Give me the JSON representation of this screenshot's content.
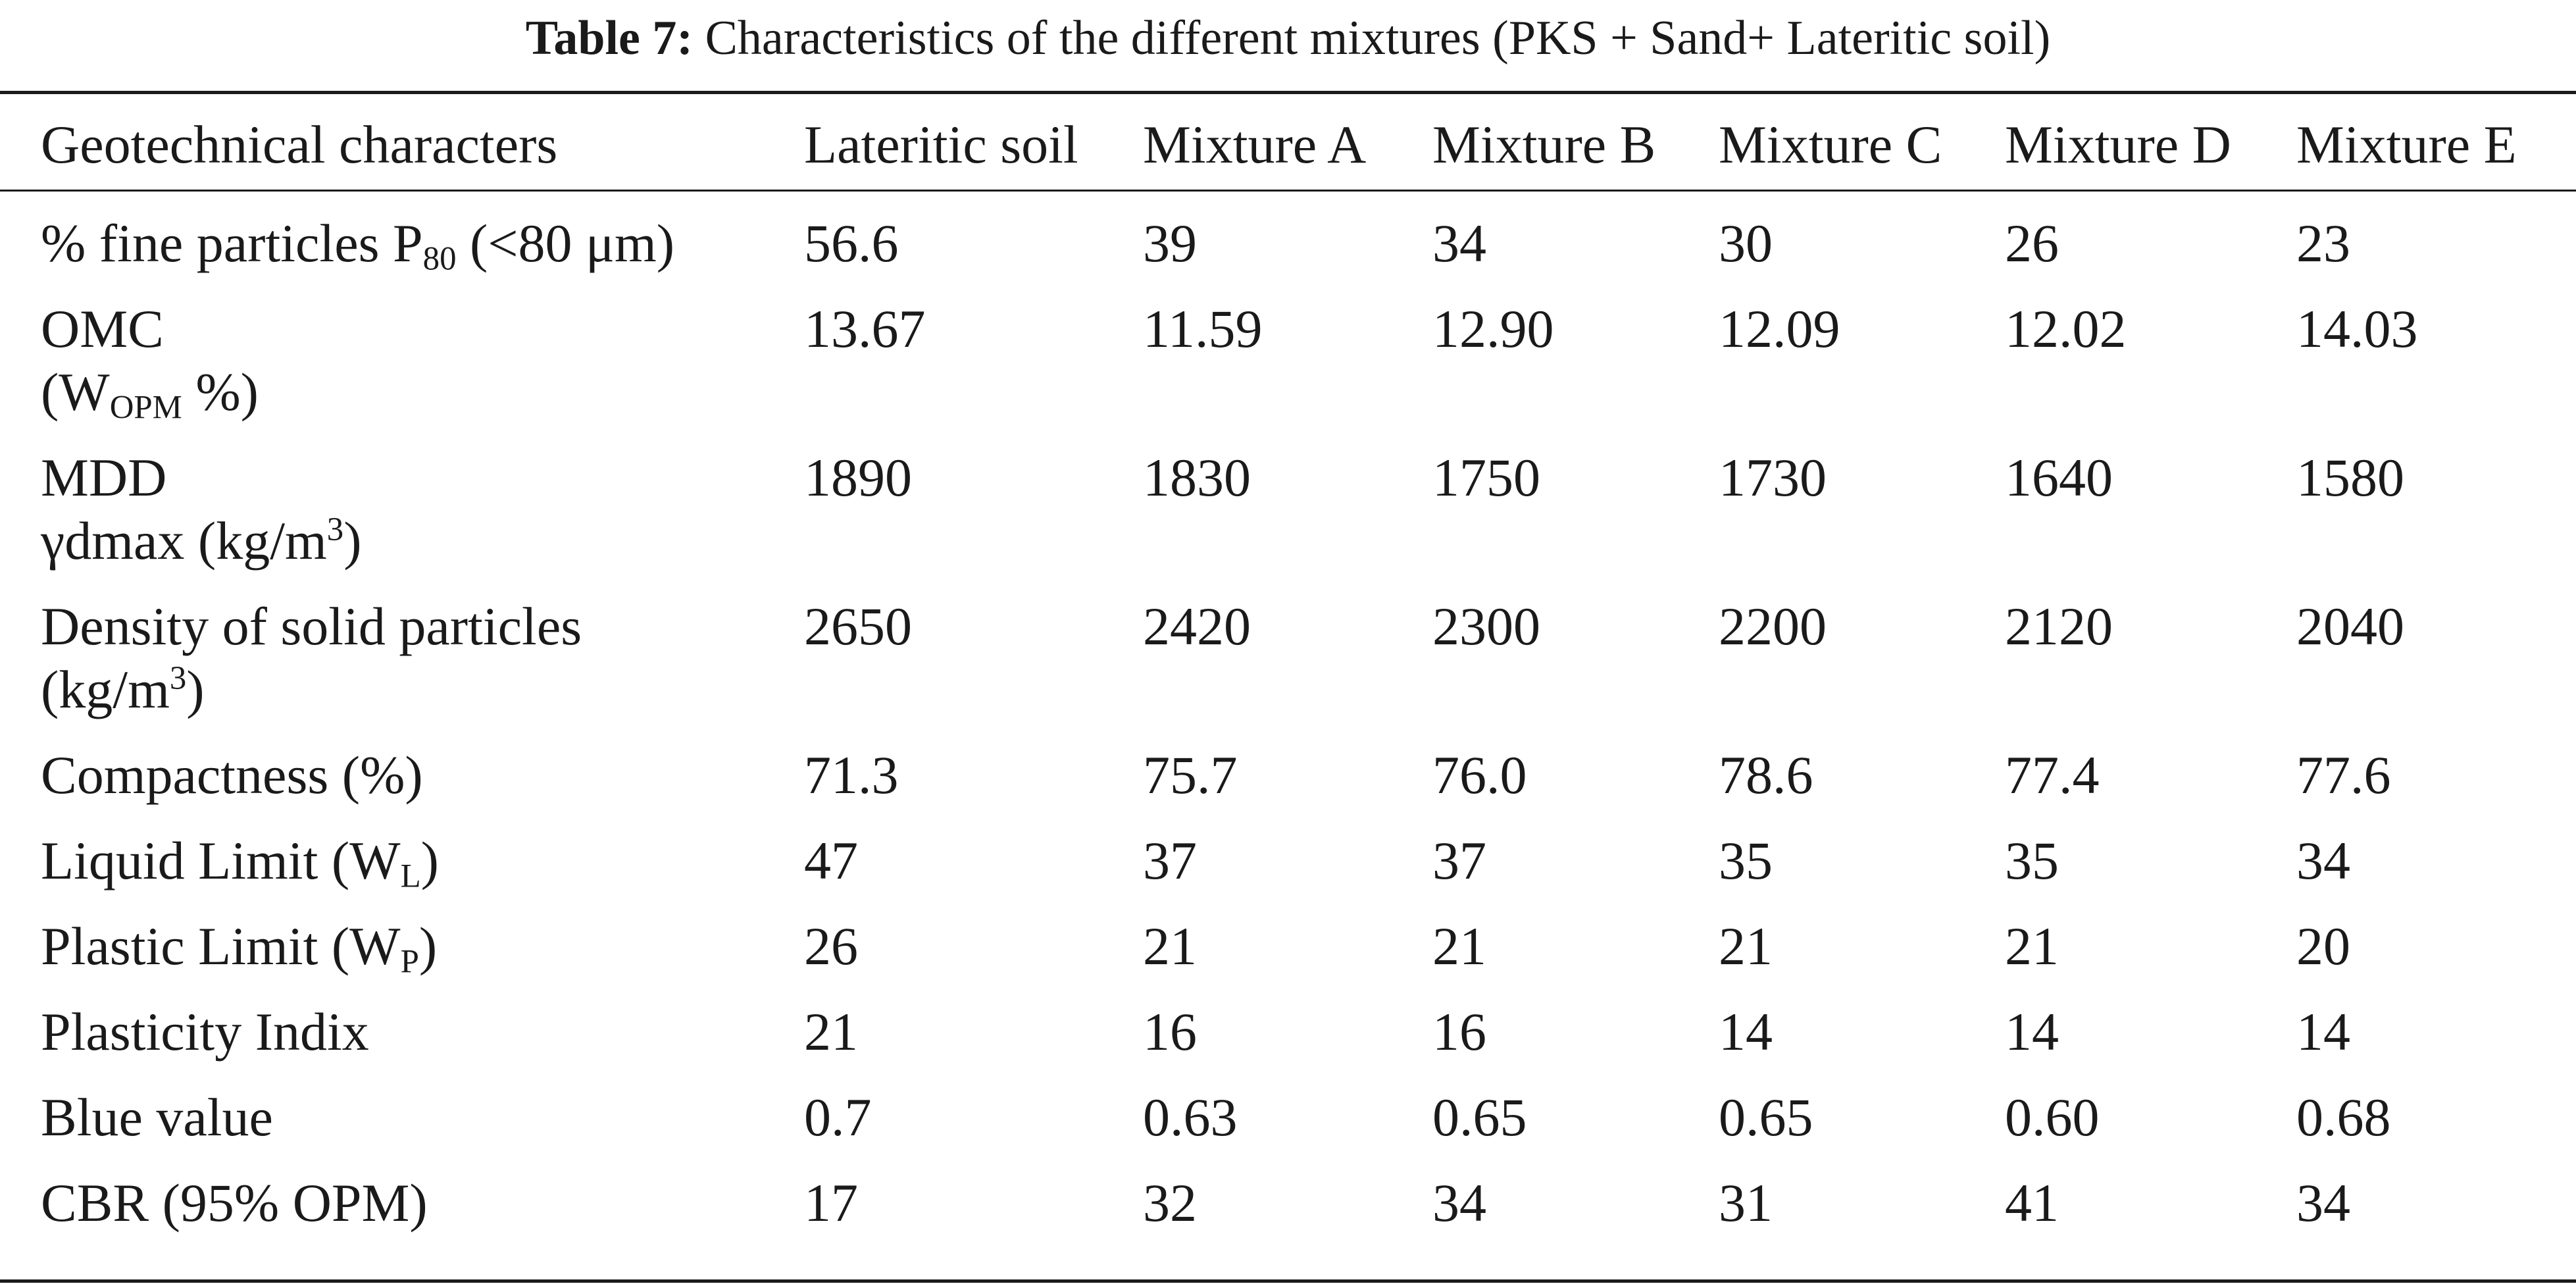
{
  "caption": {
    "label": "Table 7:",
    "text": "Characteristics of the different mixtures (PKS + Sand+ Lateritic soil)"
  },
  "headers": [
    "Geotechnical characters",
    "Lateritic soil",
    "Mixture A",
    "Mixture B",
    "Mixture C",
    "Mixture D",
    "Mixture E"
  ],
  "rows": [
    {
      "label": {
        "pre": "% fine particles P",
        "sub": "80",
        "post": " (<80 μm)"
      },
      "values": [
        "56.6",
        "39",
        "34",
        "30",
        "26",
        "23"
      ]
    },
    {
      "label": {
        "line1": "OMC",
        "line2_pre": "(W",
        "line2_sub": "OPM",
        "line2_post": " %)"
      },
      "values": [
        "13.67",
        "11.59",
        "12.90",
        "12.09",
        "12.02",
        "14.03"
      ]
    },
    {
      "label": {
        "line1": "MDD",
        "line2_pre": "γdmax (kg/m",
        "line2_sup": "3",
        "line2_post": ")"
      },
      "values": [
        "1890",
        "1830",
        "1750",
        "1730",
        "1640",
        "1580"
      ]
    },
    {
      "label": {
        "line1": "Density of solid particles",
        "line2_pre": "(kg/m",
        "line2_sup": "3",
        "line2_post": ")"
      },
      "values": [
        "2650",
        "2420",
        "2300",
        "2200",
        "2120",
        "2040"
      ]
    },
    {
      "label": {
        "text": "Compactness (%)"
      },
      "values": [
        "71.3",
        "75.7",
        "76.0",
        "78.6",
        "77.4",
        "77.6"
      ]
    },
    {
      "label": {
        "pre": "Liquid Limit (W",
        "sub": "L",
        "post": ")"
      },
      "values": [
        "47",
        "37",
        "37",
        "35",
        "35",
        "34"
      ]
    },
    {
      "label": {
        "pre": "Plastic Limit (W",
        "sub": "P",
        "post": ")"
      },
      "values": [
        "26",
        "21",
        "21",
        "21",
        "21",
        "20"
      ]
    },
    {
      "label": {
        "text": "Plasticity Indix"
      },
      "values": [
        "21",
        "16",
        "16",
        "14",
        "14",
        "14"
      ]
    },
    {
      "label": {
        "text": "Blue value"
      },
      "values": [
        "0.7",
        "0.63",
        "0.65",
        "0.65",
        "0.60",
        "0.68"
      ]
    },
    {
      "label": {
        "text": "CBR (95% OPM)"
      },
      "values": [
        "17",
        "32",
        "34",
        "31",
        "41",
        "34"
      ]
    }
  ]
}
